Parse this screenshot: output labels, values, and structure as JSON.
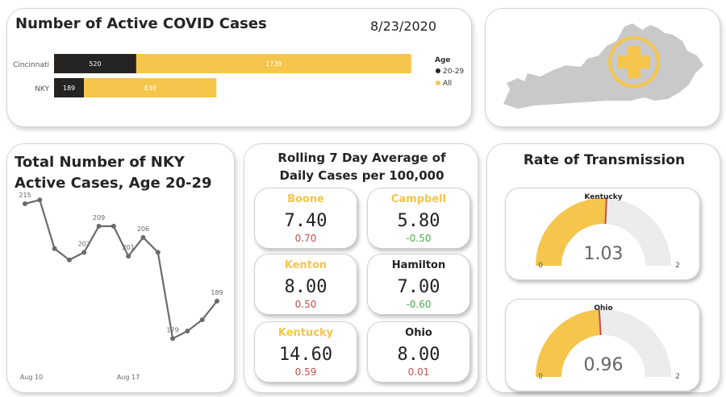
{
  "colors": {
    "dark": "#252423",
    "yellow": "#F5C54C",
    "red": "#C0504D",
    "green": "#4AAE4A",
    "gauge_bg": "#ECECEC",
    "line": "#6B6B6B",
    "map": "#C9C9C9"
  },
  "active_cases": {
    "title": "Number of Active COVID Cases",
    "date": "8/23/2020",
    "legend_title": "Age",
    "legend": [
      "20-29",
      "All"
    ],
    "chart_data": {
      "type": "bar",
      "categories": [
        "Cincinnati",
        "NKY"
      ],
      "series": [
        {
          "name": "20-29",
          "values": [
            520,
            189
          ]
        },
        {
          "name": "All",
          "values": [
            1739,
            838
          ]
        }
      ],
      "stacked": true
    }
  },
  "map": {
    "icon": "plus-icon"
  },
  "nky_cases": {
    "title": "Total Number of NKY Active Cases, Age 20-29",
    "chart_data": {
      "type": "line",
      "x_ticks": [
        "Aug 10",
        "Aug 17"
      ],
      "values": [
        215,
        216,
        203,
        200,
        202,
        209,
        209,
        201,
        206,
        202,
        179,
        181,
        184,
        189
      ],
      "labels": {
        "0": "215",
        "4": "202",
        "5": "209",
        "7": "201",
        "8": "206",
        "10": "179",
        "13": "189"
      }
    }
  },
  "rolling": {
    "title_line1": "Rolling 7 Day Average of",
    "title_line2": "Daily Cases per 100,000",
    "tiles": [
      {
        "name": "Boone",
        "value": "7.40",
        "change": "0.70",
        "name_color": "#F5C54C",
        "change_color": "#C0504D"
      },
      {
        "name": "Campbell",
        "value": "5.80",
        "change": "-0.50",
        "name_color": "#F5C54C",
        "change_color": "#4AAE4A"
      },
      {
        "name": "Kenton",
        "value": "8.00",
        "change": "0.50",
        "name_color": "#F5C54C",
        "change_color": "#C0504D"
      },
      {
        "name": "Hamilton",
        "value": "7.00",
        "change": "-0.60",
        "name_color": "#252423",
        "change_color": "#4AAE4A"
      },
      {
        "name": "Kentucky",
        "value": "14.60",
        "change": "0.59",
        "name_color": "#F5C54C",
        "change_color": "#C0504D"
      },
      {
        "name": "Ohio",
        "value": "8.00",
        "change": "0.01",
        "name_color": "#252423",
        "change_color": "#C0504D"
      }
    ]
  },
  "rate": {
    "title": "Rate of Transmission",
    "gauges": [
      {
        "name": "Kentucky",
        "value": 1.03,
        "value_label": "1.03",
        "min_label": "0",
        "max_label": "2",
        "min": 0,
        "max": 2
      },
      {
        "name": "Ohio",
        "value": 0.96,
        "value_label": "0.96",
        "min_label": "0",
        "max_label": "2",
        "min": 0,
        "max": 2
      }
    ]
  }
}
